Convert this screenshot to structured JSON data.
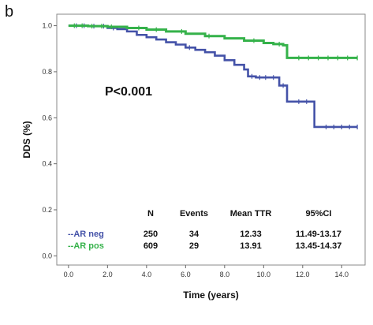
{
  "panel_label": "b",
  "chart_data": {
    "type": "line",
    "title": "",
    "xlabel": "Time (years)",
    "ylabel": "DDS (%)",
    "xlim": [
      -0.6,
      15.2
    ],
    "ylim": [
      -0.04,
      1.05
    ],
    "xticks": [
      "0.0",
      "2.0",
      "4.0",
      "6.0",
      "8.0",
      "10.0",
      "12.0",
      "14.0"
    ],
    "xtick_values": [
      0,
      2,
      4,
      6,
      8,
      10,
      12,
      14
    ],
    "yticks": [
      "0.0",
      "0.2",
      "0.4",
      "0.6",
      "0.8",
      "1.0"
    ],
    "ytick_values": [
      0,
      0.2,
      0.4,
      0.6,
      0.8,
      1.0
    ],
    "annotation": "P<0.001",
    "colors": {
      "ar_neg": "#4452a8",
      "ar_pos": "#35b24a"
    },
    "series": [
      {
        "name": "AR neg",
        "color": "#4452a8",
        "x": [
          0,
          1,
          2,
          2.5,
          3,
          3.5,
          4,
          4.5,
          5,
          5.5,
          6,
          6.5,
          7,
          7.5,
          8,
          8.5,
          9,
          9.2,
          9.6,
          10.2,
          10.8,
          11.2,
          11.6,
          12.6,
          13,
          14.8
        ],
        "y": [
          1.0,
          0.998,
          0.99,
          0.985,
          0.975,
          0.96,
          0.95,
          0.94,
          0.928,
          0.918,
          0.905,
          0.895,
          0.885,
          0.87,
          0.85,
          0.83,
          0.81,
          0.78,
          0.775,
          0.775,
          0.74,
          0.67,
          0.67,
          0.56,
          0.56,
          0.56
        ],
        "censor_x": [
          0.4,
          0.8,
          1.3,
          1.8,
          2.3,
          6.2,
          9.4,
          9.8,
          10.1,
          10.5,
          11.0,
          11.8,
          12.2,
          13.2,
          13.6,
          14.0,
          14.4,
          14.8
        ]
      },
      {
        "name": "AR pos",
        "color": "#35b24a",
        "x": [
          0,
          1,
          2,
          3,
          4,
          5,
          6,
          7,
          8,
          9,
          10,
          10.5,
          11,
          11.2,
          11.8,
          14.8
        ],
        "y": [
          1.0,
          0.998,
          0.995,
          0.99,
          0.983,
          0.975,
          0.965,
          0.955,
          0.945,
          0.935,
          0.925,
          0.92,
          0.915,
          0.86,
          0.86,
          0.86
        ],
        "censor_x": [
          0.3,
          0.7,
          1.2,
          1.7,
          2.2,
          3.6,
          4.5,
          5.8,
          7.2,
          9.5,
          10.8,
          11.8,
          12.3,
          12.8,
          13.3,
          13.8,
          14.3,
          14.8
        ]
      }
    ],
    "table": {
      "headers": [
        "N",
        "Events",
        "Mean TTR",
        "95%CI"
      ],
      "rows": [
        {
          "label": "--AR neg",
          "color": "#4452a8",
          "cells": [
            "250",
            "34",
            "12.33",
            "11.49-13.17"
          ]
        },
        {
          "label": "--AR pos",
          "color": "#35b24a",
          "cells": [
            "609",
            "29",
            "13.91",
            "13.45-14.37"
          ]
        }
      ]
    }
  }
}
